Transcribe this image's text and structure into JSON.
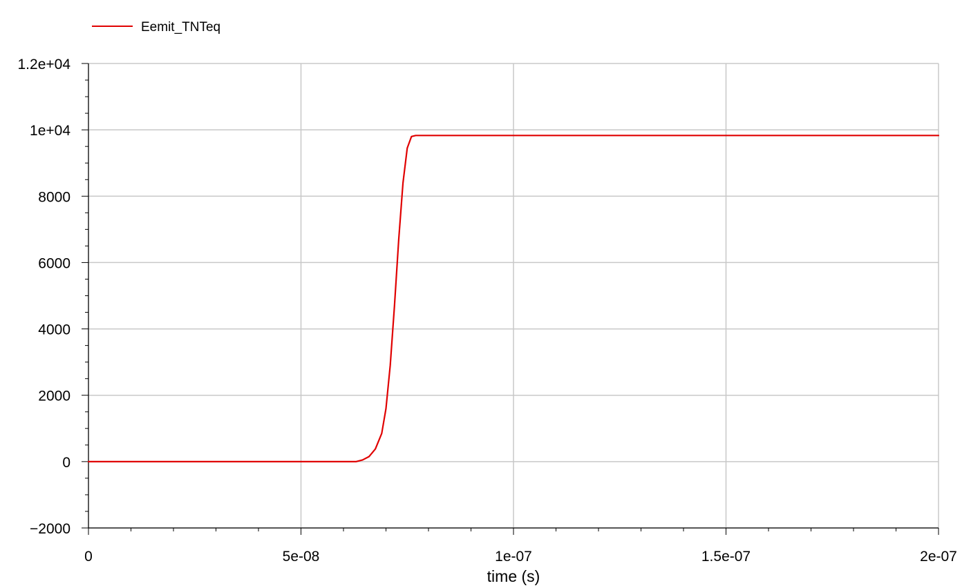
{
  "chart_data": {
    "type": "line",
    "title": "",
    "xlabel": "time (s)",
    "ylabel": "",
    "xlim": [
      0,
      2e-07
    ],
    "ylim": [
      -2000,
      12000
    ],
    "x_ticks": [
      0,
      5e-08,
      1e-07,
      1.5e-07,
      2e-07
    ],
    "x_tick_labels": [
      "0",
      "5e-08",
      "1e-07",
      "1.5e-07",
      "2e-07"
    ],
    "y_ticks": [
      -2000,
      0,
      2000,
      4000,
      6000,
      8000,
      10000,
      12000
    ],
    "y_tick_labels": [
      "−2000",
      "0",
      "2000",
      "4000",
      "6000",
      "8000",
      "1e+04",
      "1.2e+04"
    ],
    "grid": true,
    "legend": "top-left",
    "series": [
      {
        "name": "Eemit_TNTeq",
        "color": "#e00000",
        "x": [
          0,
          5e-08,
          6.3e-08,
          6.45e-08,
          6.6e-08,
          6.75e-08,
          6.9e-08,
          7e-08,
          7.1e-08,
          7.2e-08,
          7.3e-08,
          7.4e-08,
          7.5e-08,
          7.6e-08,
          7.7e-08,
          7.8e-08,
          1e-07,
          1.5e-07,
          2e-07
        ],
        "y": [
          0,
          0,
          0,
          50,
          150,
          380,
          850,
          1600,
          2900,
          4700,
          6700,
          8400,
          9450,
          9800,
          9830,
          9830,
          9830,
          9830,
          9830
        ]
      }
    ]
  }
}
